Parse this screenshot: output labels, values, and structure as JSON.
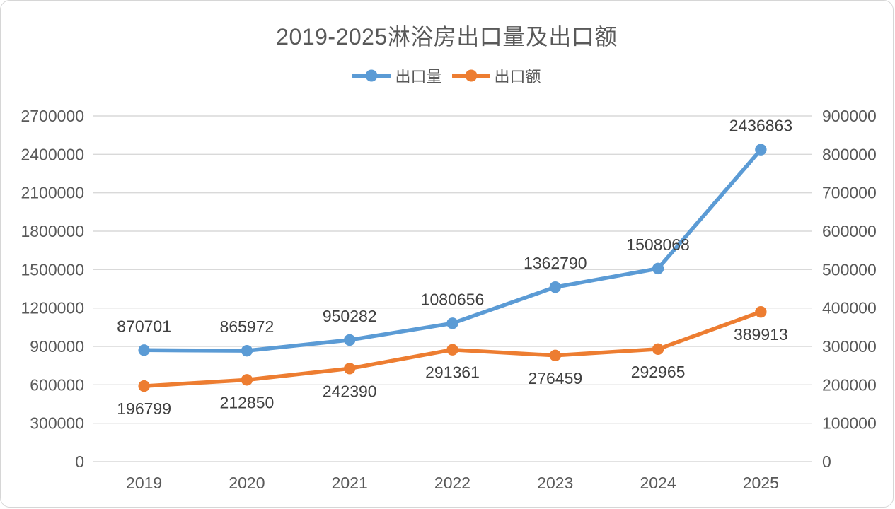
{
  "chart_data": {
    "type": "line",
    "title": "2019-2025淋浴房出口量及出口额",
    "categories": [
      "2019",
      "2020",
      "2021",
      "2022",
      "2023",
      "2024",
      "2025"
    ],
    "series": [
      {
        "name": "出口量",
        "axis": "left",
        "color": "#5B9BD5",
        "values": [
          870701,
          865972,
          950282,
          1080656,
          1362790,
          1508068,
          2436863
        ],
        "labels": [
          "870701",
          "865972",
          "950282",
          "1080656",
          "1362790",
          "1508068",
          "2436863"
        ],
        "label_position": "above"
      },
      {
        "name": "出口额",
        "axis": "right",
        "color": "#ED7D31",
        "values": [
          196799,
          212850,
          242390,
          291361,
          276459,
          292965,
          389913
        ],
        "labels": [
          "196799",
          "212850",
          "242390",
          "291361",
          "276459",
          "292965",
          "389913"
        ],
        "label_position": "below"
      }
    ],
    "left_axis": {
      "min": 0,
      "max": 2700000,
      "step": 300000,
      "ticks": [
        "0",
        "300000",
        "600000",
        "900000",
        "1200000",
        "1500000",
        "1800000",
        "2100000",
        "2400000",
        "2700000"
      ]
    },
    "right_axis": {
      "min": 0,
      "max": 900000,
      "step": 100000,
      "ticks": [
        "0",
        "100000",
        "200000",
        "300000",
        "400000",
        "500000",
        "600000",
        "700000",
        "800000",
        "900000"
      ]
    },
    "grid": true,
    "legend_position": "top",
    "colors": {
      "grid": "#D9D9D9",
      "axis_text": "#595959",
      "data_label_text": "#404040",
      "title_text": "#595959",
      "background": "#FFFFFF",
      "card_border": "#D6D6D6"
    }
  }
}
